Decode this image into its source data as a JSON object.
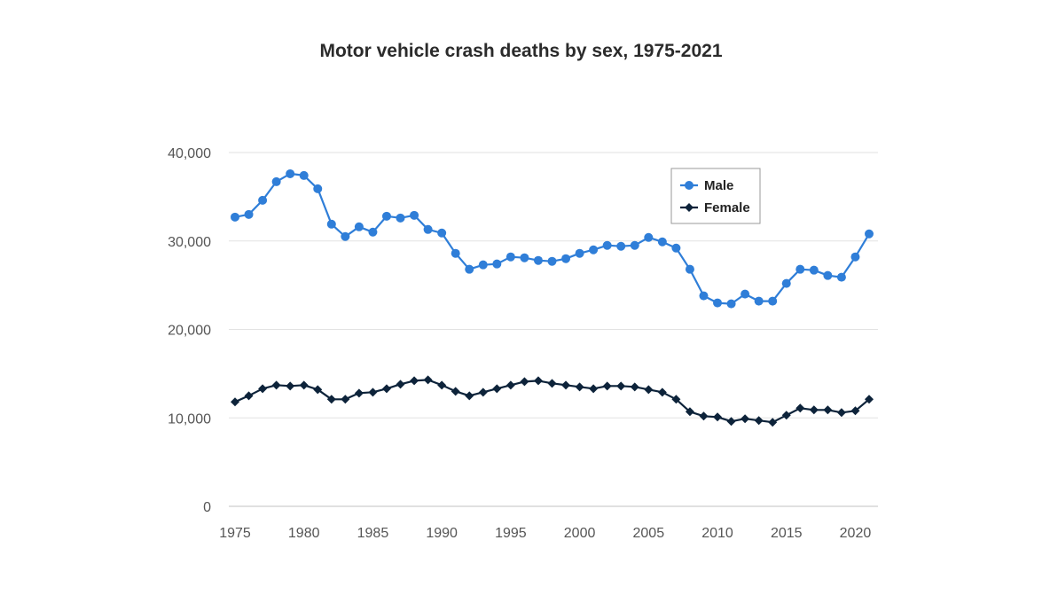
{
  "chart_data": {
    "type": "line",
    "title": "Motor vehicle crash deaths by sex, 1975-2021",
    "xlabel": "",
    "ylabel": "",
    "x": [
      1975,
      1976,
      1977,
      1978,
      1979,
      1980,
      1981,
      1982,
      1983,
      1984,
      1985,
      1986,
      1987,
      1988,
      1989,
      1990,
      1991,
      1992,
      1993,
      1994,
      1995,
      1996,
      1997,
      1998,
      1999,
      2000,
      2001,
      2002,
      2003,
      2004,
      2005,
      2006,
      2007,
      2008,
      2009,
      2010,
      2011,
      2012,
      2013,
      2014,
      2015,
      2016,
      2017,
      2018,
      2019,
      2020,
      2021
    ],
    "xlim": [
      1975,
      2021
    ],
    "x_ticks": [
      "1975",
      "1980",
      "1985",
      "1990",
      "1995",
      "2000",
      "2005",
      "2010",
      "2015",
      "2020"
    ],
    "ylim": [
      0,
      40000
    ],
    "y_ticks": [
      "0",
      "10,000",
      "20,000",
      "30,000",
      "40,000"
    ],
    "grid": "horizontal",
    "legend_position": "top-right",
    "series": [
      {
        "name": "Male",
        "color": "#2f7ed8",
        "marker": "circle",
        "values": [
          32700,
          33000,
          34600,
          36700,
          37600,
          37400,
          35900,
          31900,
          30500,
          31600,
          31000,
          32800,
          32600,
          32900,
          31300,
          30900,
          28600,
          26800,
          27300,
          27400,
          28200,
          28100,
          27800,
          27700,
          28000,
          28600,
          29000,
          29500,
          29400,
          29500,
          30400,
          29900,
          29200,
          26800,
          23800,
          23000,
          22900,
          24000,
          23200,
          23200,
          25200,
          26800,
          26700,
          26100,
          25900,
          28200,
          30800
        ]
      },
      {
        "name": "Female",
        "color": "#0d233a",
        "marker": "diamond",
        "values": [
          11800,
          12500,
          13300,
          13700,
          13600,
          13700,
          13200,
          12100,
          12100,
          12800,
          12900,
          13300,
          13800,
          14200,
          14300,
          13700,
          13000,
          12500,
          12900,
          13300,
          13700,
          14100,
          14200,
          13900,
          13700,
          13500,
          13300,
          13600,
          13600,
          13500,
          13200,
          12900,
          12100,
          10700,
          10200,
          10100,
          9600,
          9900,
          9700,
          9500,
          10300,
          11100,
          10900,
          10900,
          10600,
          10800,
          12100
        ]
      }
    ]
  }
}
